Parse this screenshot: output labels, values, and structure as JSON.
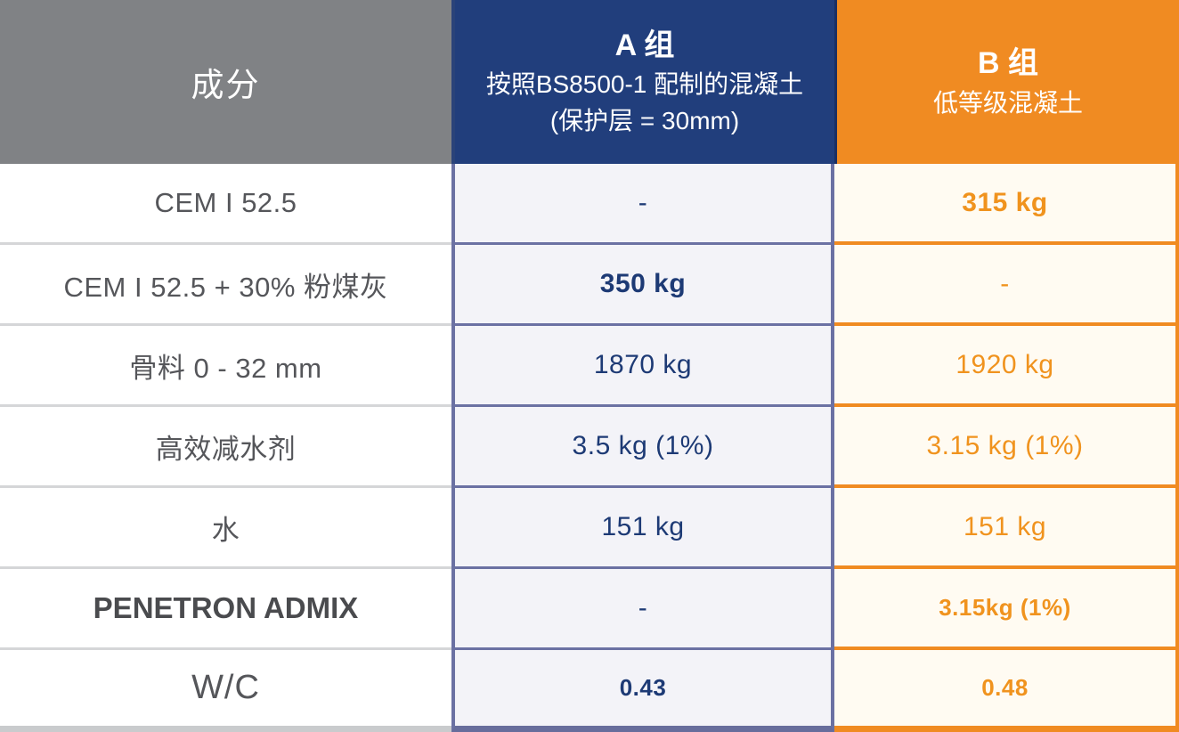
{
  "table": {
    "header": {
      "ingredient_label": "成分",
      "group_a": {
        "title": "A 组",
        "subtitle": "按照BS8500-1 配制的混凝土(保护层 = 30mm)"
      },
      "group_b": {
        "title": "B 组",
        "subtitle": "低等级混凝土"
      }
    },
    "rows": [
      {
        "label": "CEM I 52.5",
        "a": "-",
        "b": "315 kg",
        "b_bold": true
      },
      {
        "label": "CEM I 52.5 + 30% 粉煤灰",
        "a": "350 kg",
        "a_bold": true,
        "b": "-"
      },
      {
        "label": "骨料 0 - 32 mm",
        "a": "1870 kg",
        "b": "1920 kg"
      },
      {
        "label": "高效减水剂",
        "a": "3.5 kg (1%)",
        "b": "3.15 kg (1%)"
      },
      {
        "label": "水",
        "a": "151 kg",
        "b": "151 kg"
      },
      {
        "label": "PENETRON ADMIX",
        "label_bold": true,
        "a": "-",
        "b": "3.15kg (1%)",
        "b_bold": true,
        "b_small": true
      },
      {
        "label": "W/C",
        "label_large": true,
        "a": "0.43",
        "a_bold": true,
        "a_small": true,
        "b": "0.48",
        "b_bold": true,
        "b_small": true
      }
    ],
    "colors": {
      "header_gray": "#808285",
      "header_blue": "#213e7c",
      "header_orange": "#f08b22",
      "cell_a_bg": "#f3f3f8",
      "cell_b_bg": "#fffbf2",
      "border_a": "#6b71a3",
      "border_b": "#f08b22",
      "value_a_text": "#1d3a75",
      "value_b_text": "#f0931e",
      "label_text": "#55565a",
      "row_divider_gray": "#d5d6d8"
    }
  },
  "chart_data": {
    "type": "table",
    "title": "",
    "columns": [
      "成分",
      "A 组 — 按照BS8500-1 配制的混凝土(保护层 = 30mm)",
      "B 组 — 低等级混凝土"
    ],
    "rows": [
      [
        "CEM I 52.5",
        "-",
        "315 kg"
      ],
      [
        "CEM I 52.5 + 30% 粉煤灰",
        "350 kg",
        "-"
      ],
      [
        "骨料 0 - 32 mm",
        "1870 kg",
        "1920 kg"
      ],
      [
        "高效减水剂",
        "3.5 kg (1%)",
        "3.15 kg (1%)"
      ],
      [
        "水",
        "151 kg",
        "151 kg"
      ],
      [
        "PENETRON ADMIX",
        "-",
        "3.15kg (1%)"
      ],
      [
        "W/C",
        "0.43",
        "0.48"
      ]
    ]
  }
}
